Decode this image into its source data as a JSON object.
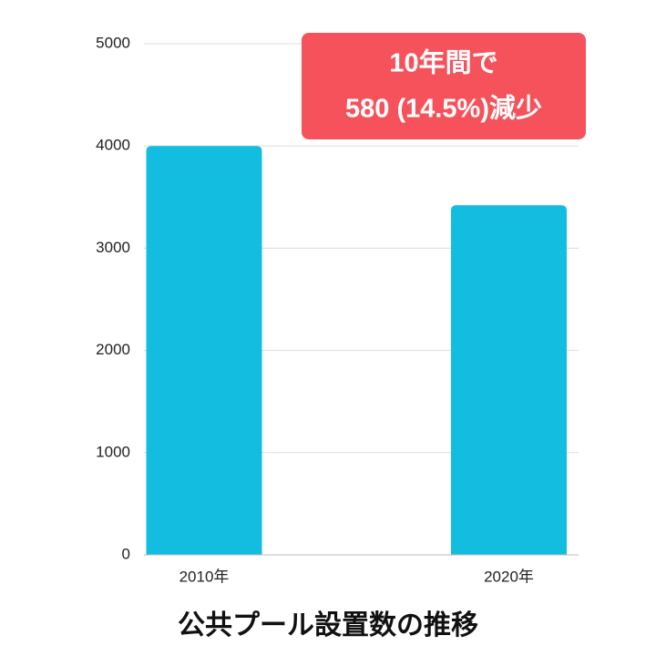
{
  "chart_data": {
    "type": "bar",
    "title": "公共プール設置数の推移",
    "categories": [
      "2010年",
      "2020年"
    ],
    "values": [
      4000,
      3420
    ],
    "color": "#13bde0",
    "ylim": [
      0,
      5000
    ],
    "yticks": [
      0,
      1000,
      2000,
      3000,
      4000,
      5000
    ],
    "grid": true,
    "annotation": [
      "10年間で",
      "580 (14.5%)減少"
    ],
    "annotation_color": "#f5525b"
  }
}
